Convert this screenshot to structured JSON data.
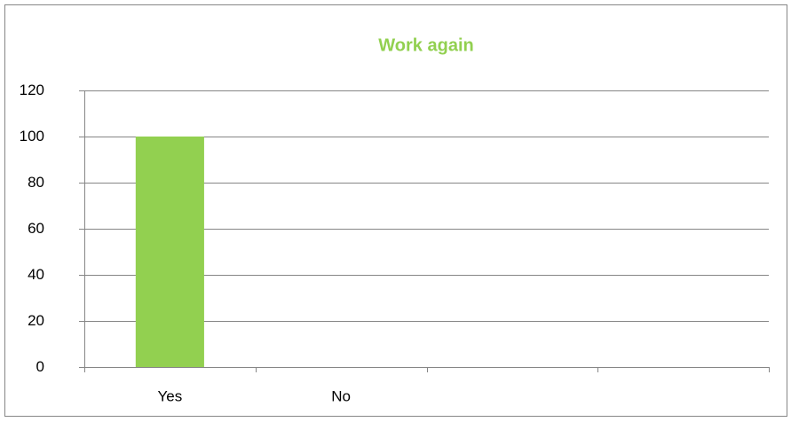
{
  "chart_data": {
    "type": "bar",
    "title": "Work again",
    "categories": [
      "Yes",
      "No",
      null,
      null
    ],
    "values": [
      100,
      0,
      null,
      null
    ],
    "color": "#92d050",
    "ylim": [
      0,
      120
    ],
    "yticks": [
      0,
      20,
      40,
      60,
      80,
      100,
      120
    ],
    "grid": true
  }
}
